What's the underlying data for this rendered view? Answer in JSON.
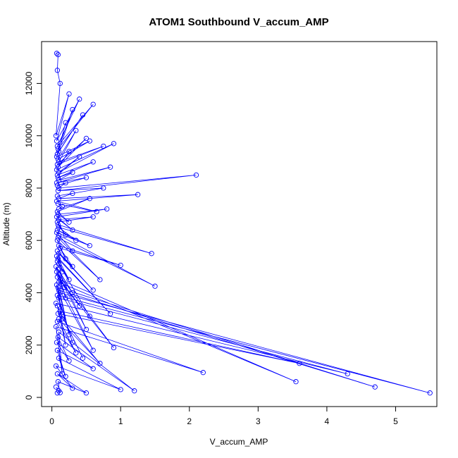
{
  "chart_data": {
    "type": "line",
    "title": "ATOM1 Southbound V_accum_AMP",
    "xlabel": "V_accum_AMP",
    "ylabel": "Altitude (m)",
    "xlim": [
      -0.15,
      5.6
    ],
    "ylim": [
      -350,
      13600
    ],
    "x_ticks": [
      0,
      1,
      2,
      3,
      4,
      5
    ],
    "y_ticks": [
      0,
      2000,
      4000,
      6000,
      8000,
      10000,
      12000
    ],
    "grid": false,
    "series_color": "#0000ff",
    "series": [
      {
        "x": [
          0.08,
          0.1,
          0.06,
          0.12,
          0.09,
          0.5,
          0.08,
          0.3,
          0.06,
          1.0,
          0.1,
          0.2,
          0.08,
          0.6,
          0.07,
          0.25,
          0.09,
          1.2,
          0.1,
          0.15,
          0.06,
          2.2,
          0.08,
          0.35,
          0.1,
          0.7,
          0.09,
          3.6,
          0.12,
          0.2,
          0.08,
          0.45,
          0.06,
          4.3,
          0.1,
          0.3,
          0.08,
          5.5,
          0.12,
          0.25,
          0.1,
          4.7,
          0.09,
          0.15,
          0.07,
          0.6,
          0.1,
          3.55,
          0.12,
          0.4,
          0.08,
          0.9,
          0.1,
          0.2,
          0.07,
          0.5,
          0.09,
          0.3,
          0.06,
          0.18,
          0.1,
          0.55,
          0.08,
          0.25,
          0.09,
          0.85,
          0.07,
          0.15,
          0.1,
          0.6,
          0.08,
          0.3,
          0.12,
          1.0,
          0.1,
          0.2,
          0.08,
          0.7,
          0.09,
          1.5,
          0.1,
          0.3,
          0.07,
          0.55,
          0.08,
          0.35,
          0.1,
          1.45,
          0.09,
          0.2,
          0.08,
          0.6,
          0.1,
          0.3,
          0.07,
          0.8,
          0.09,
          0.25,
          0.08,
          0.55,
          0.1,
          0.15,
          0.09,
          0.65,
          0.07,
          1.25,
          0.1,
          0.3,
          0.08,
          0.75,
          0.09,
          2.1,
          0.1,
          0.2,
          0.08,
          0.5,
          0.07,
          0.85,
          0.1,
          0.3,
          0.09,
          0.6,
          0.08,
          0.4,
          0.1,
          0.9,
          0.07,
          0.25,
          0.09,
          0.5,
          0.08,
          0.75,
          0.1,
          0.35,
          0.09,
          0.55,
          0.07,
          0.2,
          0.08,
          0.45,
          0.1,
          0.3,
          0.09,
          0.6,
          0.08,
          0.4,
          0.07,
          0.25,
          0.06,
          0.12,
          0.08,
          0.09,
          0.07
        ],
        "y": [
          170,
          250,
          400,
          180,
          600,
          170,
          900,
          350,
          1200,
          300,
          1500,
          800,
          1800,
          1100,
          2100,
          1400,
          2300,
          250,
          2500,
          900,
          2700,
          950,
          2900,
          1700,
          3000,
          1300,
          3200,
          1300,
          3300,
          2000,
          3500,
          1500,
          3600,
          900,
          3800,
          2100,
          3900,
          170,
          4000,
          2400,
          4100,
          400,
          4200,
          3000,
          4300,
          1800,
          4400,
          600,
          4500,
          3500,
          4600,
          1900,
          4700,
          3800,
          4800,
          2600,
          4900,
          4000,
          5000,
          4200,
          5100,
          3100,
          5200,
          4500,
          5300,
          3200,
          5400,
          4800,
          5500,
          4100,
          5600,
          5000,
          5700,
          5050,
          5800,
          5300,
          6000,
          4500,
          6100,
          4250,
          6200,
          5600,
          6300,
          5800,
          6400,
          6000,
          6500,
          5500,
          6600,
          6200,
          6700,
          6900,
          6800,
          6400,
          6900,
          7200,
          7000,
          6700,
          7100,
          7600,
          7200,
          7300,
          7400,
          7100,
          7500,
          7750,
          7600,
          7800,
          7700,
          8000,
          7900,
          8500,
          8000,
          8200,
          8100,
          8400,
          8200,
          8800,
          8300,
          8600,
          8400,
          9000,
          8500,
          9200,
          8600,
          9700,
          8700,
          9400,
          8800,
          9900,
          8900,
          9600,
          9000,
          10200,
          9100,
          9800,
          9200,
          10500,
          9300,
          10800,
          9400,
          11000,
          9500,
          11200,
          9600,
          11400,
          9800,
          11600,
          10000,
          12000,
          12500,
          13100,
          13150
        ]
      }
    ]
  }
}
